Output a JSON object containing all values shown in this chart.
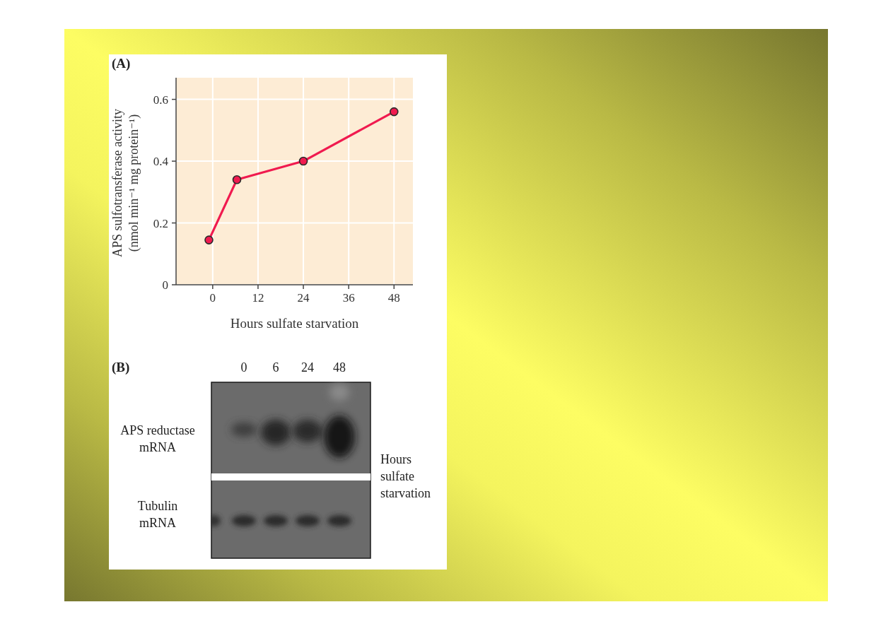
{
  "chart_data": [
    {
      "type": "line",
      "title": "(A)",
      "xlabel": "Hours sulfate starvation",
      "ylabel": "APS sulfotransferase activity\n(nmol min⁻¹ mg protein⁻¹)",
      "x": [
        -1,
        6.4,
        24,
        48
      ],
      "series": [
        {
          "color": "#f01a4f",
          "values": [
            0.145,
            0.34,
            0.4,
            0.56
          ]
        }
      ],
      "xlim": [
        -9.7,
        53
      ],
      "xticks": [
        0,
        12,
        24,
        36,
        48
      ],
      "ylim": [
        0,
        0.67
      ],
      "yticks": [
        0,
        0.2,
        0.4,
        0.6
      ],
      "grid": true,
      "marker": "circle"
    },
    {
      "type": "other",
      "title": "(B)",
      "categories": [
        "0",
        "6",
        "24",
        "48"
      ],
      "annotations": [
        "APS reductase mRNA",
        "Tubulin mRNA",
        "Hours sulfate starvation"
      ]
    }
  ]
}
